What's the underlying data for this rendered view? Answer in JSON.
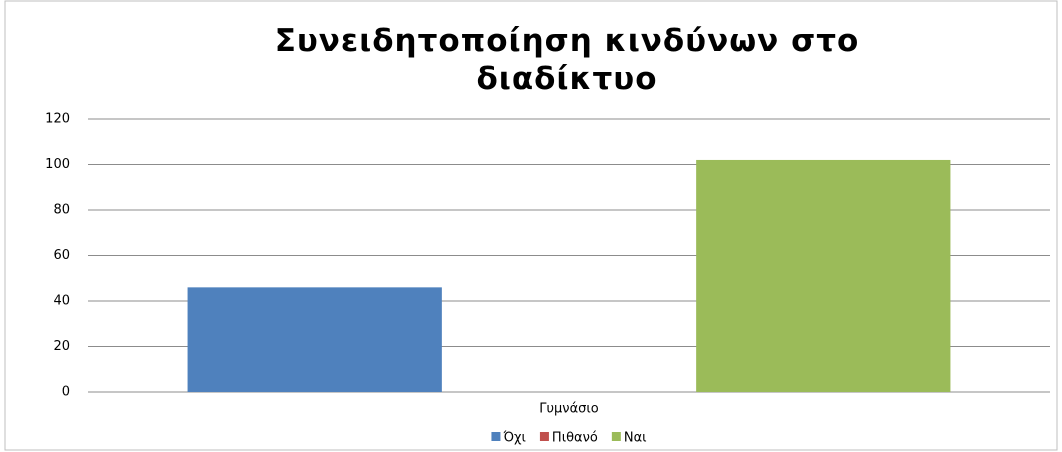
{
  "chart_data": {
    "type": "bar",
    "title": "Συνειδητοποίηση κινδύνων στο διαδίκτυο",
    "categories": [
      "Γυμνάσιο"
    ],
    "series": [
      {
        "name": "Όχι",
        "color": "#4f81bd",
        "values": [
          46
        ]
      },
      {
        "name": "Πιθανό",
        "color": "#c0504d",
        "values": [
          0
        ]
      },
      {
        "name": "Ναι",
        "color": "#9bbb59",
        "values": [
          102
        ]
      }
    ],
    "ylim": [
      0,
      120
    ],
    "yticks": [
      0,
      20,
      40,
      60,
      80,
      100,
      120
    ],
    "grid": true,
    "legend": "bottom"
  }
}
